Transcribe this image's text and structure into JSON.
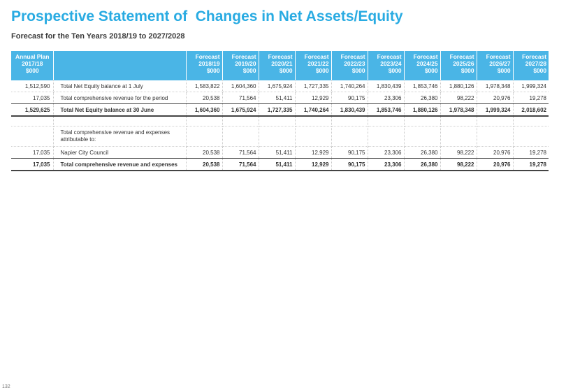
{
  "page": {
    "title": "Prospective Statement of  Changes in Net Assets/Equity",
    "subtitle": "Forecast for the Ten Years 2018/19 to 2027/2028",
    "page_number": "132"
  },
  "table": {
    "headers": [
      [
        "Annual Plan",
        "2017/18",
        "$000"
      ],
      [],
      [
        "Forecast",
        "2018/19",
        "$000"
      ],
      [
        "Forecast",
        "2019/20",
        "$000"
      ],
      [
        "Forecast",
        "2020/21",
        "$000"
      ],
      [
        "Forecast",
        "2021/22",
        "$000"
      ],
      [
        "Forecast",
        "2022/23",
        "$000"
      ],
      [
        "Forecast",
        "2023/24",
        "$000"
      ],
      [
        "Forecast",
        "2024/25",
        "$000"
      ],
      [
        "Forecast",
        "2025/26",
        "$000"
      ],
      [
        "Forecast",
        "2026/27",
        "$000"
      ],
      [
        "Forecast",
        "2027/28",
        "$000"
      ]
    ],
    "rows": [
      {
        "cells": [
          "1,512,590",
          "Total Net Equity balance at 1 July",
          "1,583,822",
          "1,604,360",
          "1,675,924",
          "1,727,335",
          "1,740,264",
          "1,830,439",
          "1,853,746",
          "1,880,126",
          "1,978,348",
          "1,999,324"
        ]
      },
      {
        "cells": [
          "17,035",
          "Total comprehensive revenue for the period",
          "20,538",
          "71,564",
          "51,411",
          "12,929",
          "90,175",
          "23,306",
          "26,380",
          "98,222",
          "20,976",
          "19,278"
        ]
      },
      {
        "cells": [
          "1,529,625",
          "Total Net Equity balance at 30 June",
          "1,604,360",
          "1,675,924",
          "1,727,335",
          "1,740,264",
          "1,830,439",
          "1,853,746",
          "1,880,126",
          "1,978,348",
          "1,999,324",
          "2,018,602"
        ]
      },
      {
        "cells": [
          "",
          "",
          "",
          "",
          "",
          "",
          "",
          "",
          "",
          "",
          "",
          ""
        ]
      },
      {
        "cells": [
          "",
          "Total comprehensive revenue and expenses attributable to:",
          "",
          "",
          "",
          "",
          "",
          "",
          "",
          "",
          "",
          ""
        ]
      },
      {
        "cells": [
          "17,035",
          "Napier City Council",
          "20,538",
          "71,564",
          "51,411",
          "12,929",
          "90,175",
          "23,306",
          "26,380",
          "98,222",
          "20,976",
          "19,278"
        ]
      },
      {
        "cells": [
          "17,035",
          "Total comprehensive revenue and expenses",
          "20,538",
          "71,564",
          "51,411",
          "12,929",
          "90,175",
          "23,306",
          "26,380",
          "98,222",
          "20,976",
          "19,278"
        ]
      }
    ]
  }
}
